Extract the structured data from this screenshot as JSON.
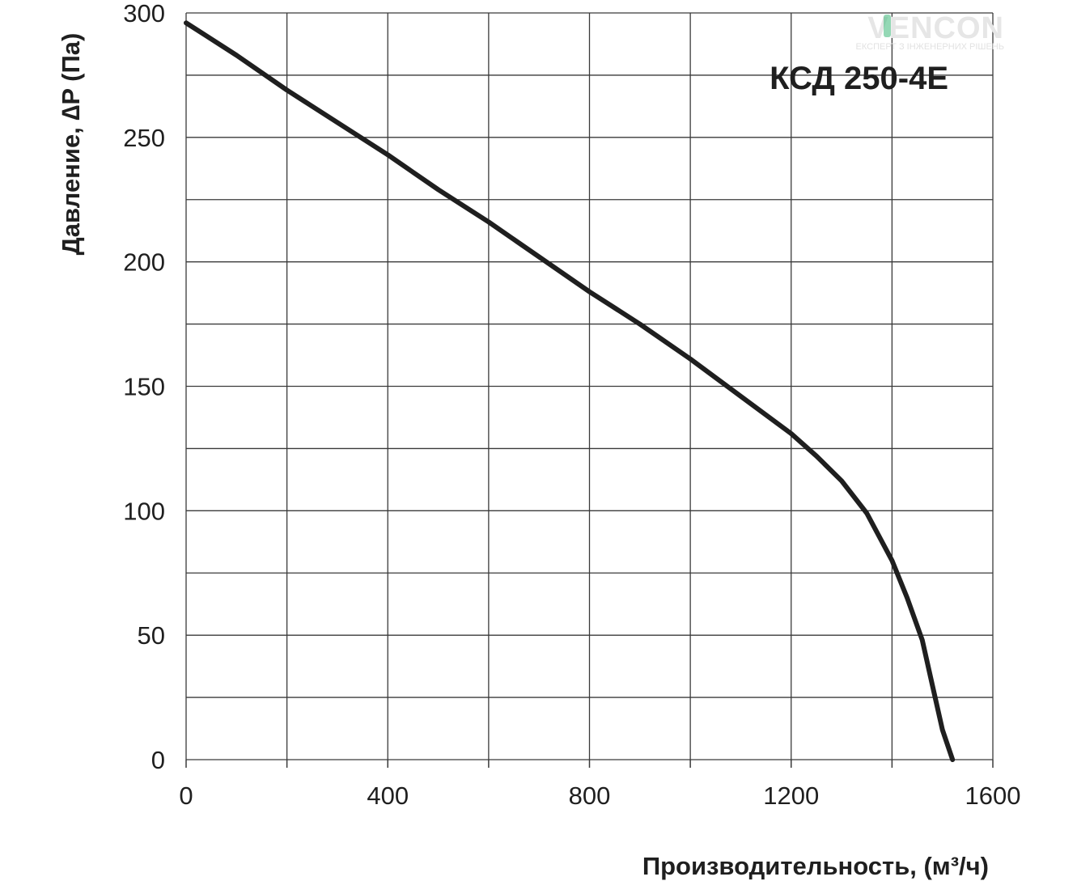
{
  "logo": {
    "text": "VENCON",
    "tagline": "ЕКСПЕРТ З ІНЖЕНЕРНИХ РІШЕНЬ"
  },
  "colors": {
    "curve": "#1f1f1f",
    "grid": "#3a3a3a",
    "brand_accent": "#3cb878"
  },
  "chart_data": {
    "type": "line",
    "title": "КСД 250-4Е",
    "xlabel": "Производительность, (м³/ч)",
    "ylabel": "Давление, ∆P (Па)",
    "xlim": [
      0,
      1600
    ],
    "ylim": [
      0,
      300
    ],
    "xticks": [
      0,
      400,
      800,
      1200,
      1600
    ],
    "yticks": [
      0,
      50,
      100,
      150,
      200,
      250,
      300
    ],
    "grid": true,
    "series": [
      {
        "x": [
          0,
          100,
          200,
          300,
          400,
          500,
          600,
          700,
          800,
          900,
          1000,
          1100,
          1200,
          1250,
          1300,
          1350,
          1400,
          1430,
          1460,
          1480,
          1500,
          1520
        ],
        "y": [
          296,
          283,
          269,
          256,
          243,
          229,
          216,
          202,
          188,
          175,
          161,
          146,
          131,
          122,
          112,
          99,
          80,
          65,
          48,
          30,
          12,
          0
        ]
      }
    ]
  }
}
